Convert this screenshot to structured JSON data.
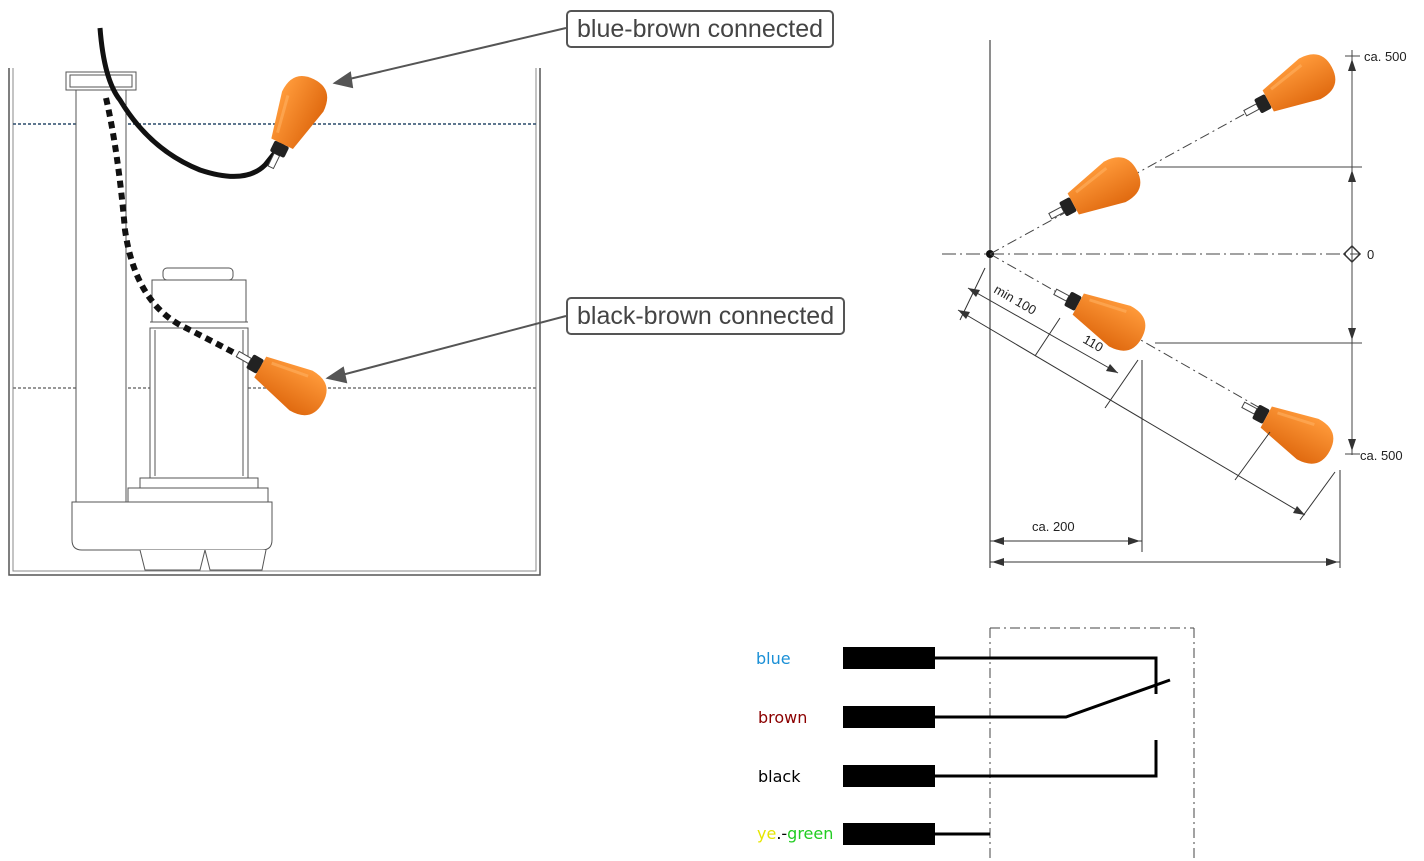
{
  "callouts": {
    "upper": "blue-brown connected",
    "lower": "black-brown connected"
  },
  "dimensions": {
    "top_right": "ca. 500",
    "zero": "0",
    "bottom_right": "ca. 500",
    "min_length": "min 100",
    "float_length": "110",
    "horizontal": "ca. 200"
  },
  "wiring": {
    "wires": [
      {
        "label": "blue",
        "color": "#1a8fd6"
      },
      {
        "label": "brown",
        "color": "#8b0000"
      },
      {
        "label": "black",
        "color": "#000000"
      }
    ],
    "ground": {
      "part1": "ye",
      "part1_color": "#e6e600",
      "part2": ".-",
      "part2_color": "#000000",
      "part3": "green",
      "part3_color": "#22cc22"
    }
  },
  "colors": {
    "float_orange": "#f08020",
    "cable": "#111111",
    "callout_border": "#555555"
  }
}
